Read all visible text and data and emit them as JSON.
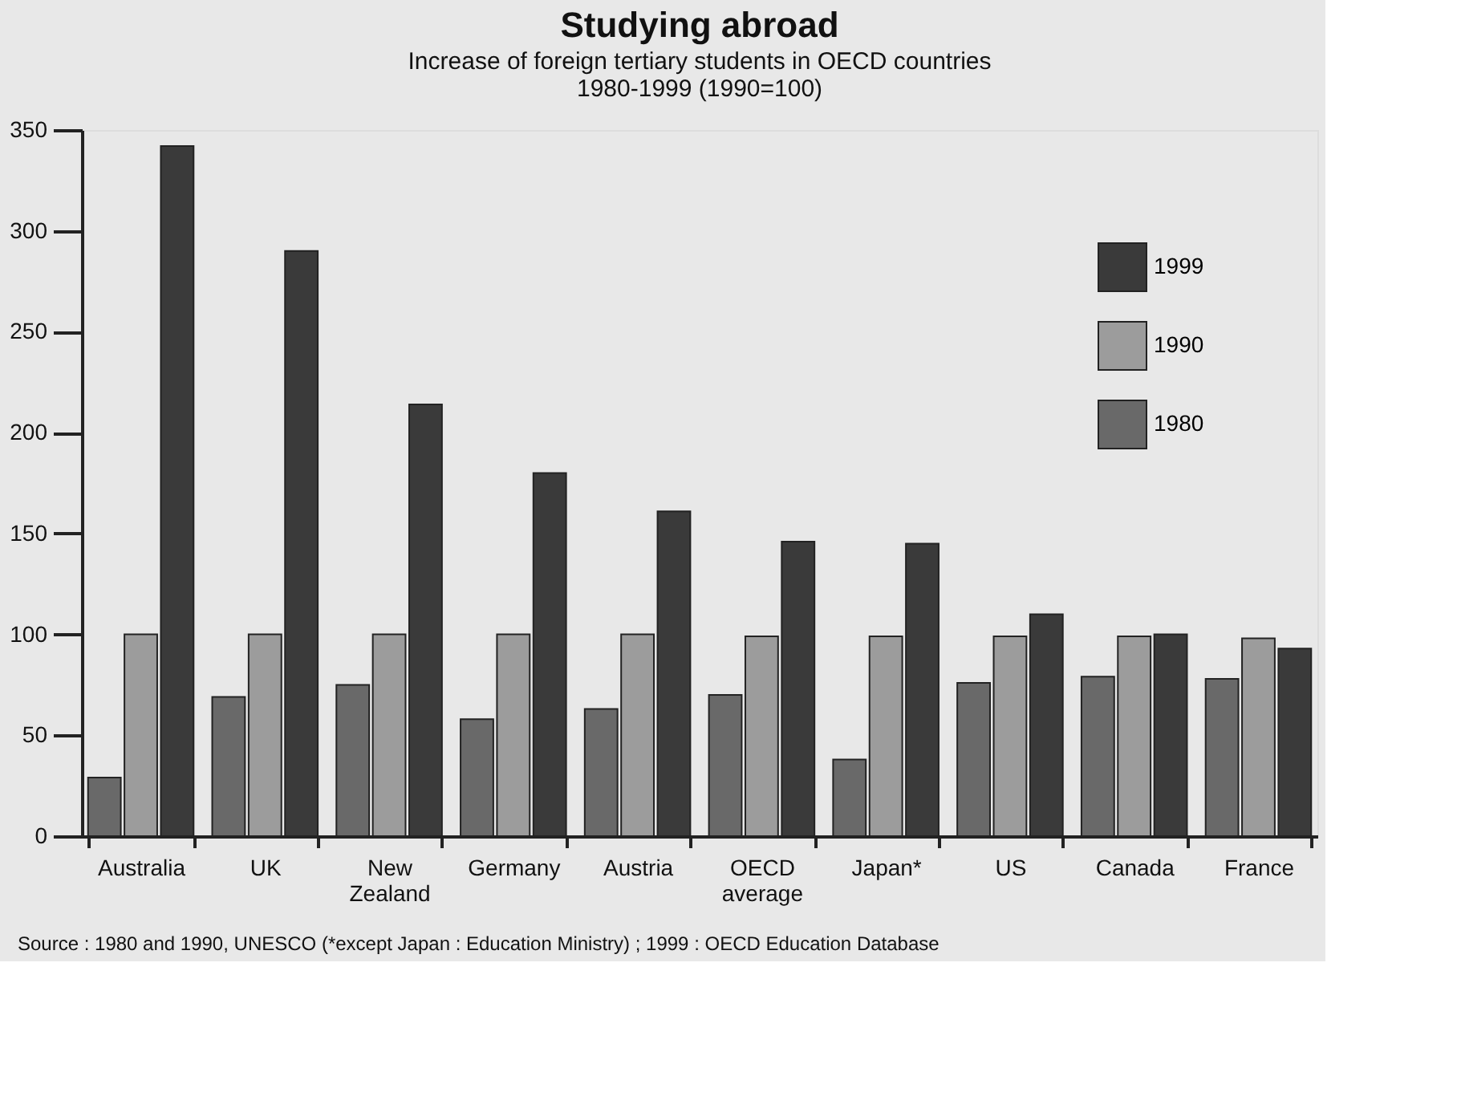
{
  "chart_data": {
    "type": "bar",
    "title": "Studying abroad",
    "subtitle": "Increase of foreign tertiary students in OECD countries\n1980-1999 (1990=100)",
    "categories": [
      "Australia",
      "UK",
      "New Zealand",
      "Germany",
      "Austria",
      "OECD average",
      "Japan*",
      "US",
      "Canada",
      "France"
    ],
    "series": [
      {
        "name": "1980",
        "color": "#696969",
        "values": [
          29,
          69,
          75,
          58,
          63,
          70,
          38,
          76,
          79,
          78
        ]
      },
      {
        "name": "1990",
        "color": "#9c9c9c",
        "values": [
          100,
          100,
          100,
          100,
          100,
          99,
          99,
          99,
          99,
          98
        ]
      },
      {
        "name": "1999",
        "color": "#3a3a3a",
        "values": [
          342,
          290,
          214,
          180,
          161,
          146,
          145,
          110,
          100,
          93
        ]
      }
    ],
    "ylim": [
      0,
      350
    ],
    "yticks": [
      0,
      50,
      100,
      150,
      200,
      250,
      300,
      350
    ],
    "grid": false,
    "legend": "top right",
    "annotations": [
      "Source : 1980 and 1990, UNESCO (*except Japan : Education Ministry) ; 1999 : OECD Education Database"
    ]
  }
}
